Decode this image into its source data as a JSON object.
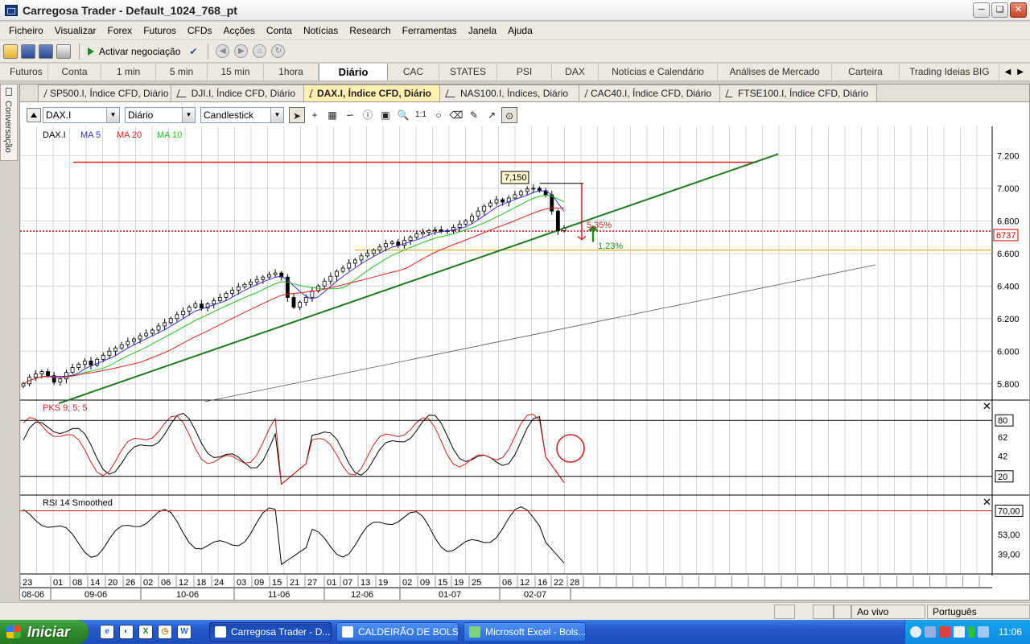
{
  "window": {
    "title": "Carregosa Trader - Default_1024_768_pt"
  },
  "menu": [
    "Ficheiro",
    "Visualizar",
    "Forex",
    "Futuros",
    "CFDs",
    "Acções",
    "Conta",
    "Notícias",
    "Research",
    "Ferramentas",
    "Janela",
    "Ajuda"
  ],
  "toolbar": {
    "trading_label": "Activar negociação"
  },
  "page_tabs": [
    "Futuros",
    "Conta",
    "1 min",
    "5 min",
    "15 min",
    "1hora",
    "Diário",
    "CAC",
    "STATES",
    "PSI",
    "DAX",
    "Notícias e Calendário",
    "Análises de Mercado",
    "Carteira",
    "Trading Ideias BIG"
  ],
  "page_tab_active": "Diário",
  "side_panel": {
    "label": "Conversação"
  },
  "chart_tabs": [
    "SP500.I, Índice CFD, Diário",
    "DJI.I, Índice CFD, Diário",
    "DAX.I, Índice CFD, Diário",
    "NAS100.I, Índices, Diário",
    "CAC40.I, Índice CFD, Diário",
    "FTSE100.I, Índice CFD, Diário"
  ],
  "chart_tab_active": "DAX.I, Índice CFD, Diário",
  "chart_controls": {
    "symbol": "DAX.I",
    "period": "Diário",
    "chart_type": "Candlestick"
  },
  "chart_data": {
    "type": "candlestick",
    "legend": {
      "symbol": "DAX.I",
      "ma5": "MA 5",
      "ma20": "MA 20",
      "ma10": "MA 10"
    },
    "y_ticks": [
      "7.200",
      "7.000",
      "6.800",
      "6.600",
      "6.400",
      "6.200",
      "6.000",
      "5.800"
    ],
    "ylim": [
      5700,
      7350
    ],
    "closes": [
      5800,
      5840,
      5860,
      5875,
      5850,
      5810,
      5830,
      5870,
      5900,
      5920,
      5940,
      5915,
      5950,
      5975,
      6000,
      6020,
      6040,
      6060,
      6075,
      6095,
      6110,
      6130,
      6155,
      6175,
      6200,
      6225,
      6245,
      6270,
      6290,
      6265,
      6290,
      6310,
      6330,
      6355,
      6375,
      6395,
      6410,
      6425,
      6440,
      6455,
      6470,
      6480,
      6455,
      6330,
      6270,
      6300,
      6330,
      6370,
      6400,
      6430,
      6460,
      6490,
      6510,
      6540,
      6560,
      6585,
      6600,
      6620,
      6640,
      6660,
      6670,
      6650,
      6680,
      6700,
      6720,
      6730,
      6740,
      6745,
      6735,
      6740,
      6760,
      6780,
      6800,
      6830,
      6860,
      6890,
      6910,
      6930,
      6915,
      6940,
      6960,
      6980,
      6995,
      7000,
      6985,
      6960,
      6860,
      6740,
      6755
    ],
    "price_label": "6737",
    "current_price": 6737,
    "annotations": {
      "peak_box": "7,150",
      "drop_pct": "5,35%",
      "rise_pct": "1,23%"
    },
    "levels": {
      "resistance": 7160,
      "support": 6620
    },
    "trendlines": [
      {
        "from": [
          5680,
          0.04
        ],
        "to": [
          7210,
          0.78
        ]
      },
      {
        "from": [
          5690,
          0.19
        ],
        "to": [
          6530,
          0.88
        ]
      }
    ],
    "pks": {
      "name": "PKS 9; 5; 5",
      "ticks": [
        "80",
        "62",
        "42",
        "20"
      ],
      "ylim": [
        0,
        100
      ]
    },
    "rsi": {
      "name": "RSI 14 Smoothed",
      "ticks": [
        "70,00",
        "53,00",
        "39,00"
      ],
      "ylim": [
        25,
        80
      ]
    },
    "x_days": [
      "23",
      "01",
      "08",
      "14",
      "20",
      "26",
      "02",
      "06",
      "12",
      "18",
      "24",
      "03",
      "09",
      "15",
      "21",
      "27",
      "01",
      "07",
      "13",
      "19",
      "02",
      "09",
      "15",
      "19",
      "25",
      "06",
      "12",
      "16",
      "22",
      "28"
    ],
    "x_months": [
      "08-06",
      "09-06",
      "10-06",
      "11-06",
      "12-06",
      "01-07",
      "02-07"
    ],
    "colors": {
      "ma5": "#3030d0",
      "ma20": "#e02020",
      "ma10": "#20c020",
      "trend": "#1f7a1f",
      "resistance": "#e02020",
      "support": "#e8c040",
      "price_line": "#c00000"
    }
  },
  "statusbar": {
    "mode": "Ao vivo",
    "language": "Português"
  },
  "taskbar": {
    "start_label": "Iniciar",
    "tasks": [
      "Carregosa Trader - D...",
      "CALDEIRÃO DE BOLS...",
      "Microsoft Excel - Bols..."
    ],
    "clock": "11:06"
  }
}
